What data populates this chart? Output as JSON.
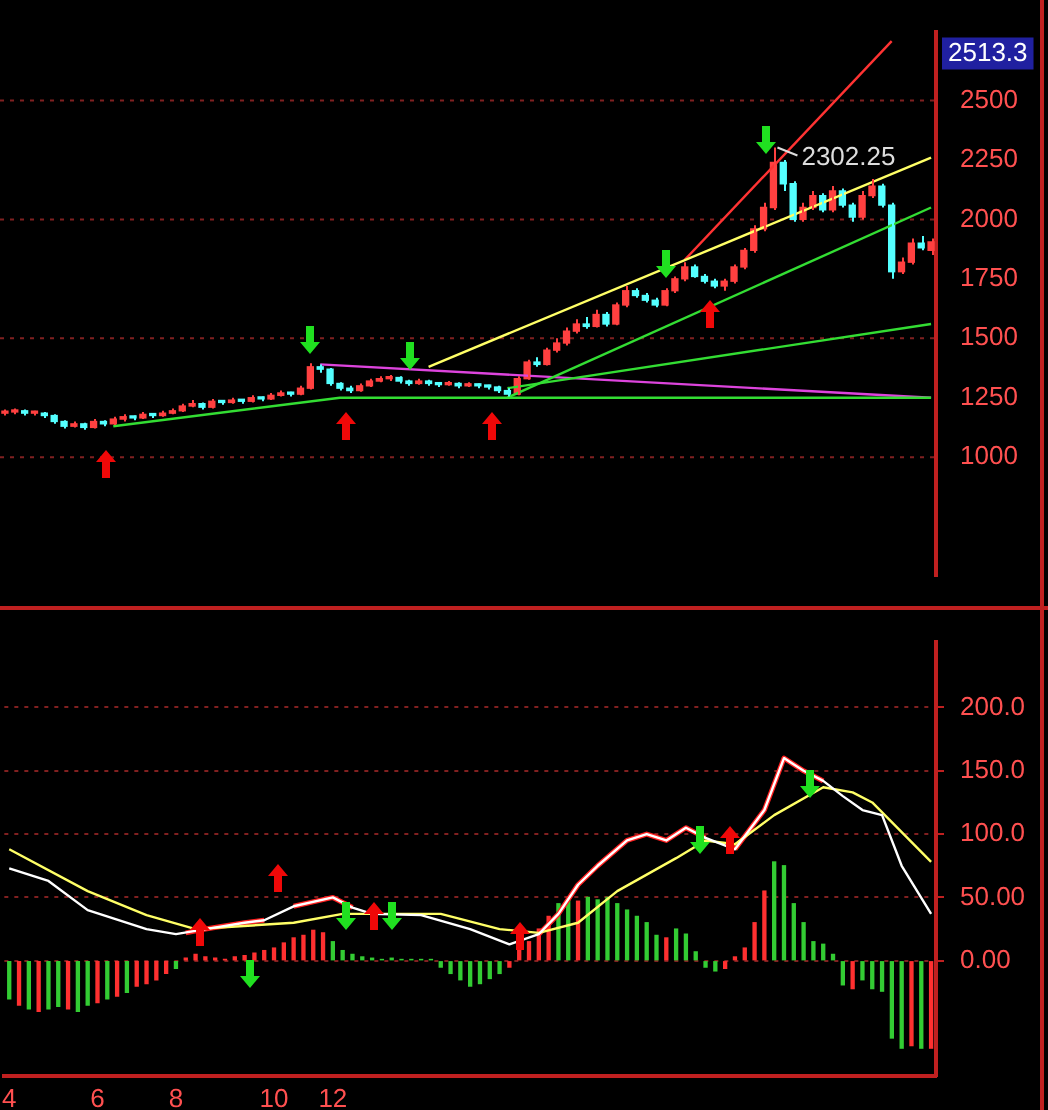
{
  "chart_data": [
    {
      "type": "candlestick",
      "categories": [
        "4",
        null,
        null,
        null,
        null,
        null,
        null,
        null,
        null,
        "6",
        null,
        null,
        null,
        null,
        null,
        null,
        null,
        "8",
        null,
        null,
        null,
        null,
        null,
        null,
        null,
        null,
        null,
        "10",
        null,
        null,
        null,
        null,
        null,
        "12",
        null,
        null,
        null,
        null,
        null,
        null,
        null,
        null,
        null,
        null,
        null,
        null,
        null,
        null,
        null,
        null,
        null,
        null,
        null,
        null,
        null,
        null,
        null,
        null,
        null,
        null,
        null,
        null,
        null,
        null,
        null,
        null,
        null,
        null,
        null,
        null,
        null,
        null,
        null,
        null,
        null,
        null,
        null,
        null,
        null,
        null,
        null,
        null,
        null,
        null,
        null,
        null,
        null,
        null,
        null,
        null,
        null,
        null,
        null,
        null,
        null
      ],
      "ohlc": [
        [
          1185,
          1200,
          1175,
          1190
        ],
        [
          1190,
          1205,
          1180,
          1195
        ],
        [
          1195,
          1200,
          1175,
          1185
        ],
        [
          1185,
          1195,
          1175,
          1185
        ],
        [
          1185,
          1190,
          1165,
          1175
        ],
        [
          1175,
          1180,
          1140,
          1150
        ],
        [
          1150,
          1155,
          1120,
          1130
        ],
        [
          1130,
          1150,
          1125,
          1140
        ],
        [
          1140,
          1145,
          1115,
          1125
        ],
        [
          1125,
          1160,
          1120,
          1150
        ],
        [
          1150,
          1155,
          1130,
          1140
        ],
        [
          1140,
          1170,
          1135,
          1160
        ],
        [
          1160,
          1180,
          1150,
          1170
        ],
        [
          1170,
          1175,
          1155,
          1165
        ],
        [
          1165,
          1190,
          1160,
          1180
        ],
        [
          1180,
          1185,
          1165,
          1175
        ],
        [
          1175,
          1195,
          1170,
          1185
        ],
        [
          1185,
          1205,
          1180,
          1195
        ],
        [
          1195,
          1225,
          1190,
          1215
        ],
        [
          1215,
          1240,
          1210,
          1225
        ],
        [
          1225,
          1230,
          1200,
          1210
        ],
        [
          1210,
          1245,
          1205,
          1235
        ],
        [
          1235,
          1240,
          1220,
          1230
        ],
        [
          1230,
          1250,
          1225,
          1240
        ],
        [
          1240,
          1245,
          1225,
          1235
        ],
        [
          1235,
          1260,
          1230,
          1250
        ],
        [
          1250,
          1255,
          1235,
          1245
        ],
        [
          1245,
          1270,
          1240,
          1260
        ],
        [
          1260,
          1280,
          1255,
          1270
        ],
        [
          1270,
          1275,
          1255,
          1265
        ],
        [
          1265,
          1300,
          1260,
          1290
        ],
        [
          1290,
          1395,
          1285,
          1380
        ],
        [
          1380,
          1390,
          1355,
          1370
        ],
        [
          1370,
          1375,
          1300,
          1310
        ],
        [
          1310,
          1315,
          1280,
          1290
        ],
        [
          1290,
          1300,
          1270,
          1280
        ],
        [
          1280,
          1310,
          1275,
          1300
        ],
        [
          1300,
          1330,
          1295,
          1320
        ],
        [
          1320,
          1340,
          1315,
          1330
        ],
        [
          1330,
          1345,
          1320,
          1335
        ],
        [
          1335,
          1340,
          1310,
          1320
        ],
        [
          1320,
          1325,
          1300,
          1310
        ],
        [
          1310,
          1330,
          1305,
          1320
        ],
        [
          1320,
          1325,
          1300,
          1310
        ],
        [
          1310,
          1315,
          1295,
          1305
        ],
        [
          1305,
          1320,
          1300,
          1310
        ],
        [
          1310,
          1315,
          1290,
          1300
        ],
        [
          1300,
          1315,
          1295,
          1305
        ],
        [
          1305,
          1310,
          1290,
          1300
        ],
        [
          1300,
          1305,
          1285,
          1295
        ],
        [
          1295,
          1300,
          1270,
          1280
        ],
        [
          1280,
          1290,
          1255,
          1265
        ],
        [
          1265,
          1340,
          1260,
          1330
        ],
        [
          1330,
          1410,
          1325,
          1400
        ],
        [
          1400,
          1420,
          1380,
          1390
        ],
        [
          1390,
          1460,
          1385,
          1450
        ],
        [
          1450,
          1500,
          1440,
          1480
        ],
        [
          1480,
          1545,
          1470,
          1530
        ],
        [
          1530,
          1580,
          1520,
          1560
        ],
        [
          1560,
          1590,
          1540,
          1550
        ],
        [
          1550,
          1620,
          1545,
          1600
        ],
        [
          1600,
          1610,
          1550,
          1560
        ],
        [
          1560,
          1650,
          1555,
          1640
        ],
        [
          1640,
          1720,
          1630,
          1700
        ],
        [
          1700,
          1710,
          1670,
          1680
        ],
        [
          1680,
          1690,
          1650,
          1660
        ],
        [
          1660,
          1670,
          1630,
          1640
        ],
        [
          1640,
          1710,
          1635,
          1700
        ],
        [
          1700,
          1760,
          1690,
          1750
        ],
        [
          1750,
          1820,
          1740,
          1800
        ],
        [
          1800,
          1810,
          1755,
          1760
        ],
        [
          1760,
          1770,
          1730,
          1740
        ],
        [
          1740,
          1750,
          1710,
          1720
        ],
        [
          1720,
          1750,
          1700,
          1740
        ],
        [
          1740,
          1810,
          1730,
          1800
        ],
        [
          1800,
          1880,
          1790,
          1870
        ],
        [
          1870,
          1975,
          1860,
          1960
        ],
        [
          1960,
          2070,
          1950,
          2050
        ],
        [
          2050,
          2302.25,
          2040,
          2240
        ],
        [
          2240,
          2250,
          2120,
          2150
        ],
        [
          2150,
          2160,
          1990,
          2000
        ],
        [
          2000,
          2070,
          1990,
          2050
        ],
        [
          2050,
          2120,
          2040,
          2100
        ],
        [
          2100,
          2110,
          2030,
          2040
        ],
        [
          2040,
          2140,
          2030,
          2120
        ],
        [
          2120,
          2130,
          2050,
          2060
        ],
        [
          2060,
          2070,
          1990,
          2010
        ],
        [
          2010,
          2120,
          2000,
          2100
        ],
        [
          2100,
          2170,
          2090,
          2140
        ],
        [
          2140,
          2150,
          2050,
          2060
        ],
        [
          2060,
          2070,
          1750,
          1780
        ],
        [
          1780,
          1840,
          1770,
          1820
        ],
        [
          1820,
          1920,
          1810,
          1900
        ],
        [
          1900,
          1930,
          1870,
          1880
        ],
        [
          1870,
          1920,
          1850,
          1905
        ]
      ],
      "colors": [
        "#ff4040",
        "#ff4040",
        "#54ffff",
        "#ff4040",
        "#54ffff",
        "#54ffff",
        "#54ffff",
        "#ff4040",
        "#54ffff",
        "#ff4040",
        "#54ffff",
        "#ff4040",
        "#ff4040",
        "#54ffff",
        "#ff4040",
        "#54ffff",
        "#ff4040",
        "#ff4040",
        "#ff4040",
        "#ff4040",
        "#54ffff",
        "#ff4040",
        "#54ffff",
        "#ff4040",
        "#54ffff",
        "#ff4040",
        "#54ffff",
        "#ff4040",
        "#ff4040",
        "#54ffff",
        "#ff4040",
        "#ff4040",
        "#54ffff",
        "#54ffff",
        "#54ffff",
        "#54ffff",
        "#ff4040",
        "#ff4040",
        "#ff4040",
        "#ff4040",
        "#54ffff",
        "#54ffff",
        "#ff4040",
        "#54ffff",
        "#54ffff",
        "#ff4040",
        "#54ffff",
        "#ff4040",
        "#54ffff",
        "#54ffff",
        "#54ffff",
        "#54ffff",
        "#ff4040",
        "#ff4040",
        "#54ffff",
        "#ff4040",
        "#ff4040",
        "#ff4040",
        "#ff4040",
        "#54ffff",
        "#ff4040",
        "#54ffff",
        "#ff4040",
        "#ff4040",
        "#54ffff",
        "#54ffff",
        "#54ffff",
        "#ff4040",
        "#ff4040",
        "#ff4040",
        "#54ffff",
        "#54ffff",
        "#54ffff",
        "#ff4040",
        "#ff4040",
        "#ff4040",
        "#ff4040",
        "#ff4040",
        "#ff4040",
        "#54ffff",
        "#54ffff",
        "#ff4040",
        "#ff4040",
        "#54ffff",
        "#ff4040",
        "#54ffff",
        "#54ffff",
        "#ff4040",
        "#ff4040",
        "#54ffff",
        "#54ffff",
        "#ff4040",
        "#ff4040",
        "#54ffff",
        "#ff4040"
      ],
      "series": [
        {
          "type": "line",
          "color": "#33dd33",
          "values": [
            null,
            null,
            null,
            null,
            null,
            null,
            null,
            null,
            null,
            null,
            null,
            1130,
            null,
            null,
            null,
            null,
            null,
            null,
            null,
            null,
            null,
            null,
            null,
            null,
            null,
            null,
            null,
            null,
            null,
            null,
            null,
            null,
            null,
            null,
            1250,
            null,
            null,
            null,
            null,
            null,
            null,
            null,
            null,
            null,
            null,
            null,
            null,
            null,
            null,
            null,
            null,
            null,
            null,
            null,
            null,
            null,
            null,
            null,
            null,
            null,
            null,
            null,
            null,
            null,
            null,
            null,
            null,
            null,
            null,
            null,
            null,
            null,
            null,
            null,
            null,
            null,
            null,
            null,
            null,
            null,
            null,
            null,
            null,
            null,
            null,
            null,
            null,
            null,
            null,
            null,
            null,
            null,
            null,
            null,
            1250
          ]
        },
        {
          "type": "line",
          "color": "#33dd33",
          "values": [
            null,
            null,
            null,
            null,
            null,
            null,
            null,
            null,
            null,
            null,
            null,
            null,
            null,
            null,
            null,
            null,
            null,
            null,
            null,
            null,
            null,
            null,
            null,
            null,
            null,
            null,
            null,
            null,
            null,
            null,
            null,
            null,
            null,
            null,
            null,
            null,
            null,
            null,
            null,
            null,
            null,
            null,
            null,
            null,
            null,
            null,
            null,
            null,
            null,
            null,
            null,
            1250,
            null,
            null,
            null,
            null,
            null,
            null,
            null,
            null,
            null,
            null,
            null,
            null,
            null,
            null,
            null,
            null,
            null,
            null,
            null,
            null,
            null,
            null,
            null,
            null,
            null,
            null,
            null,
            null,
            null,
            null,
            null,
            null,
            null,
            null,
            null,
            null,
            null,
            null,
            null,
            null,
            null,
            null,
            2050
          ]
        },
        {
          "type": "line",
          "color": "#33dd33",
          "values": [
            null,
            null,
            null,
            null,
            null,
            null,
            null,
            null,
            null,
            null,
            null,
            null,
            null,
            null,
            null,
            null,
            null,
            null,
            null,
            null,
            null,
            null,
            null,
            null,
            null,
            null,
            null,
            null,
            null,
            null,
            null,
            null,
            null,
            null,
            null,
            null,
            null,
            null,
            null,
            null,
            null,
            null,
            null,
            null,
            null,
            null,
            null,
            null,
            null,
            null,
            null,
            1290,
            null,
            null,
            null,
            null,
            null,
            null,
            null,
            null,
            null,
            null,
            null,
            null,
            null,
            null,
            null,
            null,
            null,
            null,
            null,
            null,
            null,
            null,
            null,
            null,
            null,
            null,
            null,
            null,
            null,
            null,
            null,
            null,
            null,
            null,
            null,
            null,
            null,
            null,
            null,
            null,
            null,
            null,
            1560
          ]
        },
        {
          "type": "line",
          "color": "#dd44dd",
          "values": [
            null,
            null,
            null,
            null,
            null,
            null,
            null,
            null,
            null,
            null,
            null,
            null,
            null,
            null,
            null,
            null,
            null,
            null,
            null,
            null,
            null,
            null,
            null,
            null,
            null,
            null,
            null,
            null,
            null,
            null,
            null,
            null,
            1390,
            null,
            null,
            null,
            null,
            null,
            null,
            null,
            null,
            null,
            null,
            null,
            null,
            null,
            null,
            null,
            null,
            null,
            null,
            null,
            null,
            null,
            null,
            null,
            null,
            null,
            null,
            null,
            null,
            null,
            null,
            null,
            null,
            null,
            null,
            null,
            null,
            null,
            null,
            null,
            null,
            null,
            null,
            null,
            null,
            null,
            null,
            null,
            null,
            null,
            null,
            null,
            null,
            null,
            null,
            null,
            null,
            null,
            null,
            null,
            null,
            null,
            1250
          ]
        },
        {
          "type": "line",
          "color": "#ffff66",
          "values": [
            null,
            null,
            null,
            null,
            null,
            null,
            null,
            null,
            null,
            null,
            null,
            null,
            null,
            null,
            null,
            null,
            null,
            null,
            null,
            null,
            null,
            null,
            null,
            null,
            null,
            null,
            null,
            null,
            null,
            null,
            null,
            null,
            null,
            null,
            null,
            null,
            null,
            null,
            null,
            null,
            null,
            null,
            null,
            1380,
            null,
            null,
            null,
            null,
            null,
            null,
            null,
            null,
            null,
            null,
            null,
            null,
            null,
            null,
            null,
            null,
            null,
            null,
            null,
            null,
            null,
            null,
            null,
            null,
            null,
            null,
            null,
            null,
            null,
            null,
            null,
            null,
            null,
            null,
            null,
            null,
            null,
            null,
            null,
            null,
            null,
            null,
            null,
            null,
            null,
            null,
            null,
            null,
            null,
            null,
            2260
          ]
        },
        {
          "type": "line",
          "color": "#ff3333",
          "values": [
            null,
            null,
            null,
            null,
            null,
            null,
            null,
            null,
            null,
            null,
            null,
            null,
            null,
            null,
            null,
            null,
            null,
            null,
            null,
            null,
            null,
            null,
            null,
            null,
            null,
            null,
            null,
            null,
            null,
            null,
            null,
            null,
            null,
            null,
            null,
            null,
            null,
            null,
            null,
            null,
            null,
            null,
            null,
            null,
            null,
            null,
            null,
            null,
            null,
            null,
            null,
            null,
            null,
            null,
            null,
            null,
            null,
            null,
            null,
            null,
            null,
            null,
            null,
            null,
            null,
            null,
            null,
            null,
            null,
            1830,
            null,
            null,
            null,
            null,
            null,
            null,
            null,
            null,
            null,
            null,
            null,
            null,
            null,
            null,
            null,
            null,
            null,
            null,
            null,
            null,
            2750,
            null,
            null,
            null,
            null
          ]
        }
      ],
      "ylim": [
        500,
        2790
      ],
      "yticks": [
        1000,
        1250,
        1500,
        1750,
        2000,
        2250,
        2500
      ],
      "tick_labels": "y",
      "grid": false,
      "ref_lines": [
        {
          "axis": "y",
          "value": 1000,
          "line_style": "dotted",
          "color": "#802020"
        },
        {
          "axis": "y",
          "value": 1500,
          "line_style": "dotted",
          "color": "#802020"
        },
        {
          "axis": "y",
          "value": 2000,
          "line_style": "dotted",
          "color": "#802020"
        },
        {
          "axis": "y",
          "value": 2500,
          "line_style": "dotted",
          "color": "#802020"
        }
      ],
      "annotations": [
        "2302.25",
        "2513.3"
      ]
    },
    {
      "type": "bar",
      "categories": [
        "4",
        null,
        null,
        null,
        null,
        null,
        null,
        null,
        null,
        "6",
        null,
        null,
        null,
        null,
        null,
        null,
        null,
        "8",
        null,
        null,
        null,
        null,
        null,
        null,
        null,
        null,
        null,
        "10",
        null,
        null,
        null,
        null,
        null,
        "12",
        null,
        null,
        null,
        null,
        null,
        null,
        null,
        null,
        null,
        null,
        null,
        null,
        null,
        null,
        null,
        null,
        null,
        null,
        null,
        null,
        null,
        null,
        null,
        null,
        null,
        null,
        null,
        null,
        null,
        null,
        null,
        null,
        null,
        null,
        null,
        null,
        null,
        null,
        null,
        null,
        null,
        null,
        null,
        null,
        null,
        null,
        null,
        null,
        null,
        null,
        null,
        null,
        null,
        null,
        null,
        null,
        null,
        null,
        null,
        null,
        null
      ],
      "series": [
        {
          "type": "bar",
          "values": [
            -30,
            -35,
            -38,
            -40,
            -38,
            -36,
            -38,
            -40,
            -35,
            -33,
            -30,
            -28,
            -25,
            -20,
            -18,
            -15,
            -10,
            -6,
            2,
            5,
            3,
            2,
            1,
            3,
            4,
            6,
            8,
            10,
            14,
            18,
            20,
            24,
            22,
            15,
            8,
            5,
            3,
            2,
            1,
            2,
            1,
            1,
            1,
            1,
            -5,
            -10,
            -15,
            -20,
            -18,
            -14,
            -10,
            -5,
            8,
            15,
            25,
            35,
            45,
            48,
            47,
            50,
            48,
            50,
            45,
            40,
            35,
            30,
            20,
            18,
            25,
            21,
            7,
            -5,
            -8,
            -6,
            3,
            10,
            30,
            55,
            78,
            75,
            45,
            30,
            15,
            13,
            5,
            -19,
            -22,
            -15,
            -22,
            -24,
            -61,
            -69,
            -67,
            -69,
            -69
          ],
          "colors": [
            "#33cc33",
            "#ff3030",
            "#33cc33",
            "#ff3030",
            "#33cc33",
            "#33cc33",
            "#ff3030",
            "#33cc33",
            "#33cc33",
            "#ff3030",
            "#33cc33",
            "#ff3030",
            "#33cc33",
            "#ff3030",
            "#ff3030",
            "#ff3030",
            "#ff3030",
            "#33cc33",
            "#ff3030",
            "#ff3030",
            "#ff3030",
            "#ff3030",
            "#ff3030",
            "#ff3030",
            "#ff3030",
            "#ff3030",
            "#ff3030",
            "#ff3030",
            "#ff3030",
            "#ff3030",
            "#ff3030",
            "#ff3030",
            "#ff3030",
            "#33cc33",
            "#33cc33",
            "#33cc33",
            "#33cc33",
            "#33cc33",
            "#33cc33",
            "#33cc33",
            "#33cc33",
            "#33cc33",
            "#33cc33",
            "#33cc33",
            "#33cc33",
            "#33cc33",
            "#33cc33",
            "#33cc33",
            "#33cc33",
            "#33cc33",
            "#33cc33",
            "#ff3030",
            "#ff3030",
            "#ff3030",
            "#ff3030",
            "#ff3030",
            "#33cc33",
            "#33cc33",
            "#ff3030",
            "#33cc33",
            "#33cc33",
            "#33cc33",
            "#33cc33",
            "#33cc33",
            "#33cc33",
            "#33cc33",
            "#33cc33",
            "#ff3030",
            "#33cc33",
            "#33cc33",
            "#33cc33",
            "#33cc33",
            "#33cc33",
            "#ff3030",
            "#ff3030",
            "#ff3030",
            "#ff3030",
            "#ff3030",
            "#33cc33",
            "#33cc33",
            "#33cc33",
            "#33cc33",
            "#33cc33",
            "#33cc33",
            "#33cc33",
            "#33cc33",
            "#ff3030",
            "#33cc33",
            "#33cc33",
            "#33cc33",
            "#33cc33",
            "#33cc33",
            "#ff3030",
            "#33cc33",
            "#ff3030"
          ]
        },
        {
          "type": "line",
          "color": "#ffffff",
          "values": [
            73,
            null,
            null,
            null,
            63,
            null,
            null,
            null,
            40,
            null,
            null,
            null,
            null,
            null,
            25,
            null,
            null,
            21,
            null,
            null,
            25,
            null,
            null,
            null,
            30,
            null,
            32,
            null,
            null,
            43,
            null,
            null,
            null,
            50,
            null,
            42,
            null,
            37,
            null,
            null,
            null,
            null,
            36,
            null,
            null,
            null,
            null,
            25,
            null,
            null,
            null,
            13,
            null,
            null,
            21,
            null,
            37,
            null,
            60,
            null,
            75,
            null,
            null,
            95,
            null,
            100,
            null,
            95,
            null,
            105,
            null,
            97,
            null,
            null,
            88,
            null,
            null,
            119,
            null,
            160,
            null,
            150,
            null,
            142,
            null,
            130,
            null,
            119,
            null,
            115,
            null,
            75,
            null,
            null,
            37
          ]
        },
        {
          "type": "line",
          "color": "#ffff66",
          "values": [
            88,
            null,
            null,
            null,
            null,
            null,
            null,
            null,
            55,
            null,
            null,
            null,
            null,
            null,
            36,
            null,
            null,
            null,
            null,
            25,
            null,
            null,
            null,
            null,
            null,
            null,
            null,
            null,
            null,
            30,
            null,
            null,
            null,
            null,
            37,
            null,
            null,
            null,
            null,
            null,
            null,
            null,
            null,
            null,
            37,
            null,
            null,
            null,
            null,
            null,
            25,
            null,
            null,
            null,
            22,
            null,
            null,
            null,
            30,
            null,
            null,
            null,
            55,
            null,
            null,
            null,
            null,
            null,
            81,
            null,
            null,
            95,
            null,
            null,
            92,
            null,
            null,
            null,
            115,
            null,
            null,
            null,
            null,
            137,
            null,
            null,
            133,
            null,
            125,
            null,
            null,
            null,
            null,
            null,
            78
          ]
        },
        {
          "type": "line",
          "color": "#ff2020",
          "values": [
            null,
            null,
            null,
            null,
            null,
            null,
            null,
            null,
            null,
            null,
            null,
            null,
            null,
            null,
            null,
            null,
            null,
            null,
            22,
            null,
            25,
            null,
            null,
            null,
            30,
            null,
            32,
            null,
            null,
            null,
            null,
            null,
            null,
            null,
            null,
            null,
            null,
            null,
            null,
            null,
            null,
            null,
            null,
            null,
            null,
            null,
            null,
            null,
            null,
            null,
            null,
            null,
            null,
            null,
            null,
            null,
            null,
            null,
            null,
            null,
            null,
            null,
            null,
            null,
            null,
            null,
            null,
            null,
            null,
            null,
            null,
            null,
            null,
            null,
            null,
            null,
            null,
            null,
            null,
            null,
            null,
            null,
            null,
            null,
            null,
            null,
            null,
            null,
            null,
            null,
            null,
            null,
            null,
            null,
            null
          ]
        },
        {
          "type": "line",
          "color": "#ff2020",
          "values": [
            null,
            null,
            null,
            null,
            null,
            null,
            null,
            null,
            null,
            null,
            null,
            null,
            null,
            null,
            null,
            null,
            null,
            null,
            null,
            null,
            null,
            null,
            null,
            null,
            null,
            null,
            null,
            null,
            null,
            43,
            null,
            null,
            null,
            50,
            null,
            42,
            null,
            null,
            null,
            null,
            null,
            null,
            null,
            null,
            null,
            null,
            null,
            null,
            null,
            null,
            null,
            null,
            null,
            null,
            null,
            null,
            null,
            null,
            null,
            null,
            null,
            null,
            null,
            null,
            null,
            null,
            null,
            null,
            null,
            null,
            null,
            null,
            null,
            null,
            null,
            null,
            null,
            null,
            null,
            null,
            null,
            null,
            null,
            null,
            null,
            null,
            null,
            null,
            null,
            null,
            null,
            null,
            null,
            null,
            null
          ]
        },
        {
          "type": "line",
          "color": "#ff2020",
          "values": [
            null,
            null,
            null,
            null,
            null,
            null,
            null,
            null,
            null,
            null,
            null,
            null,
            null,
            null,
            null,
            null,
            null,
            null,
            null,
            null,
            null,
            null,
            null,
            null,
            null,
            null,
            null,
            null,
            null,
            null,
            null,
            null,
            null,
            null,
            null,
            null,
            null,
            null,
            null,
            null,
            null,
            null,
            null,
            null,
            null,
            null,
            null,
            null,
            null,
            null,
            null,
            null,
            null,
            null,
            21,
            null,
            37,
            null,
            60,
            null,
            75,
            null,
            null,
            95,
            null,
            100,
            null,
            95,
            null,
            105,
            null,
            97,
            null,
            null,
            null,
            null,
            null,
            null,
            null,
            null,
            null,
            null,
            null,
            null,
            null,
            null,
            null,
            null,
            null,
            null,
            null,
            null,
            null,
            null,
            null
          ]
        },
        {
          "type": "line",
          "color": "#ff2020",
          "values": [
            null,
            null,
            null,
            null,
            null,
            null,
            null,
            null,
            null,
            null,
            null,
            null,
            null,
            null,
            null,
            null,
            null,
            null,
            null,
            null,
            null,
            null,
            null,
            null,
            null,
            null,
            null,
            null,
            null,
            null,
            null,
            null,
            null,
            null,
            null,
            null,
            null,
            null,
            null,
            null,
            null,
            null,
            null,
            null,
            null,
            null,
            null,
            null,
            null,
            null,
            null,
            null,
            null,
            null,
            null,
            null,
            null,
            null,
            null,
            null,
            null,
            null,
            null,
            null,
            null,
            null,
            null,
            null,
            null,
            null,
            null,
            null,
            null,
            null,
            88,
            null,
            null,
            119,
            null,
            160,
            null,
            150,
            null,
            142,
            null,
            null,
            null,
            null,
            null,
            null,
            null,
            null,
            null,
            null,
            null
          ]
        }
      ],
      "ylim": [
        -91,
        252
      ],
      "yticks": [
        {
          "value": 0,
          "label": "0.00"
        },
        {
          "value": 50,
          "label": "50.00"
        },
        {
          "value": 100,
          "label": "100.0"
        },
        {
          "value": 150,
          "label": "150.0"
        },
        {
          "value": 200,
          "label": "200.0"
        }
      ],
      "grid": "y"
    }
  ]
}
